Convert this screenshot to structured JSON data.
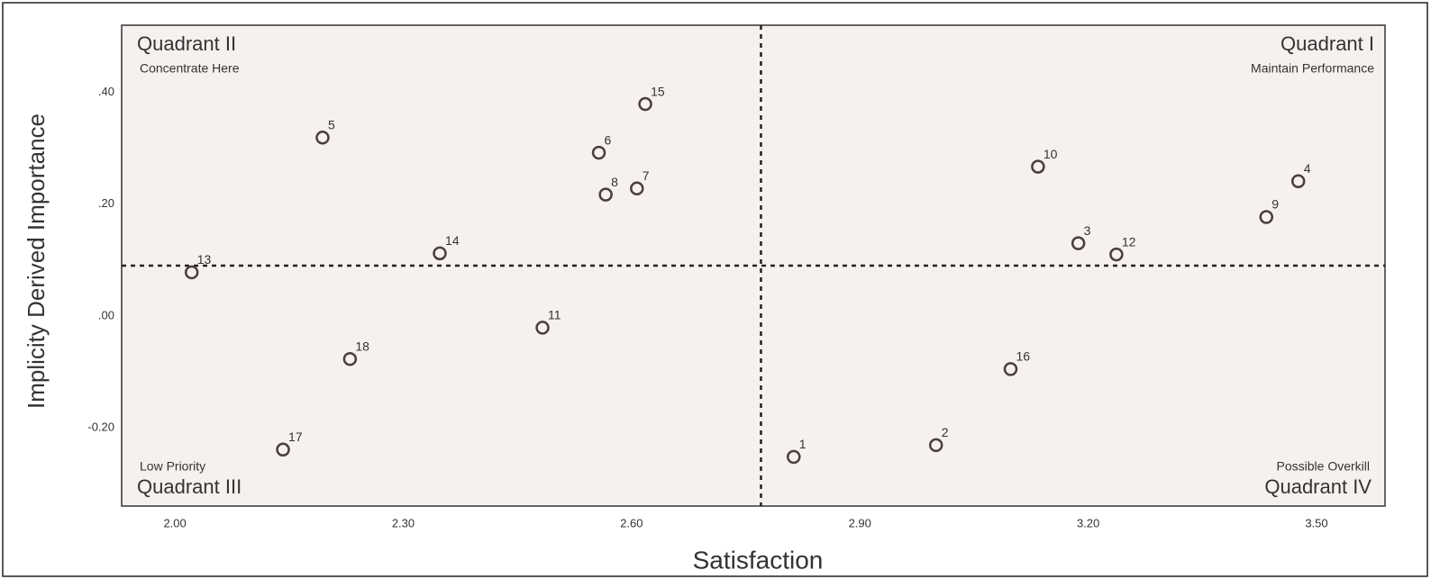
{
  "chart_data": {
    "type": "scatter",
    "x_label": "Satisfaction",
    "y_label": "Implicity Derived Importance",
    "xlim": [
      1.93,
      3.59
    ],
    "ylim": [
      -0.34,
      0.52
    ],
    "xticks": [
      {
        "value": 2.0,
        "label": "2.00"
      },
      {
        "value": 2.3,
        "label": "2.30"
      },
      {
        "value": 2.6,
        "label": "2.60"
      },
      {
        "value": 2.9,
        "label": "2.90"
      },
      {
        "value": 3.2,
        "label": "3.20"
      },
      {
        "value": 3.5,
        "label": "3.50"
      }
    ],
    "yticks": [
      {
        "value": 0.4,
        "label": ".40"
      },
      {
        "value": 0.2,
        "label": ".20"
      },
      {
        "value": 0.0,
        "label": ".00"
      },
      {
        "value": -0.2,
        "label": "-0.20"
      }
    ],
    "quadrant_lines": {
      "x": 2.77,
      "y": 0.09
    },
    "quadrants": [
      {
        "name": "Quadrant I",
        "note": "Maintain Performance"
      },
      {
        "name": "Quadrant II",
        "note": "Concentrate Here"
      },
      {
        "name": "Quadrant III",
        "note": "Low Priority"
      },
      {
        "name": "Quadrant IV",
        "note": "Possible Overkill"
      }
    ],
    "color": "#4a3f3c",
    "labels": [
      "1",
      "2",
      "3",
      "4",
      "5",
      "6",
      "7",
      "8",
      "9",
      "10",
      "11",
      "12",
      "13",
      "14",
      "15",
      "16",
      "17",
      "18"
    ],
    "x": [
      2.813,
      3.0,
      3.187,
      3.476,
      2.194,
      2.557,
      2.607,
      2.566,
      3.434,
      3.134,
      2.483,
      3.237,
      2.022,
      2.348,
      2.618,
      3.098,
      2.142,
      2.23
    ],
    "values": [
      -0.252,
      -0.231,
      0.13,
      0.241,
      0.319,
      0.292,
      0.228,
      0.217,
      0.177,
      0.267,
      -0.021,
      0.11,
      0.078,
      0.112,
      0.379,
      -0.095,
      -0.239,
      -0.077
    ]
  }
}
